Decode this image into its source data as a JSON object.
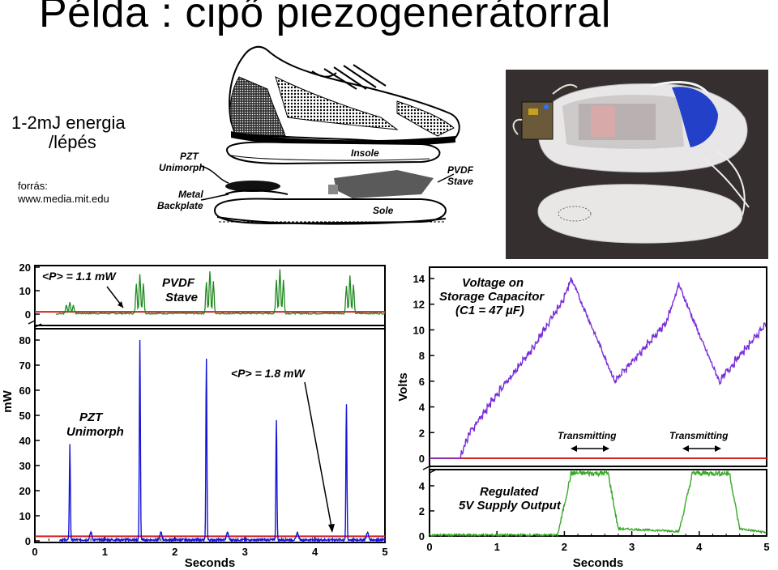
{
  "slide": {
    "title": "Példa : cipő piezogenerátorral",
    "energy_line1": "1-2mJ energia",
    "energy_line2": "/lépés",
    "source_label": "forrás:",
    "source_url": "www.media.mit.edu"
  },
  "diagram": {
    "pzt_unimorph": "PZT\nUnimorph",
    "metal_backplate": "Metal\nBackplate",
    "insole": "Insole",
    "sole": "Sole",
    "pvdf_stave": "PVDF\nStave"
  },
  "left_chart": {
    "ylabel": "mW",
    "xlabel": "Seconds",
    "x_ticks": [
      "0",
      "1",
      "2",
      "3",
      "4",
      "5"
    ],
    "top_y_ticks": [
      "20",
      "10",
      "0"
    ],
    "bottom_y_ticks": [
      "80",
      "70",
      "60",
      "50",
      "40",
      "30",
      "20",
      "10",
      "0"
    ],
    "pvdf_power": "<P> = 1.1 mW",
    "pvdf_label": "PVDF\nStave",
    "pzt_power": "<P> = 1.8 mW",
    "pzt_label": "PZT\nUnimorph"
  },
  "right_chart": {
    "ylabel": "Volts",
    "xlabel": "Seconds",
    "x_ticks": [
      "0",
      "1",
      "2",
      "3",
      "4",
      "5"
    ],
    "top_y_ticks": [
      "14",
      "12",
      "10",
      "8",
      "6",
      "4",
      "2",
      "0"
    ],
    "bottom_y_ticks": [
      "4",
      "2",
      "0"
    ],
    "capacitor_label": "Voltage on\nStorage Capacitor\n(C1 = 47 µF)",
    "transmitting_1": "Transmitting",
    "transmitting_2": "Transmitting",
    "regulated_label": "Regulated\n5V Supply Output"
  },
  "colors": {
    "pvdf_trace": "#1f8a1f",
    "pzt_trace": "#1414d8",
    "capacitor_trace": "#7a2fd8",
    "regulated_trace": "#3aa82a",
    "baseline": "#d42020"
  },
  "chart_data": [
    {
      "type": "line",
      "title": "",
      "xlabel": "Seconds",
      "ylabel": "mW",
      "xlim": [
        0,
        5
      ],
      "series": [
        {
          "name": "PVDF Stave",
          "x": [
            0.5,
            1.5,
            2.5,
            3.5,
            4.5
          ],
          "values": [
            5,
            17,
            18,
            19,
            16
          ]
        },
        {
          "name": "PZT Unimorph",
          "x": [
            0.5,
            1.5,
            2.45,
            3.45,
            4.45
          ],
          "values": [
            38,
            82,
            72,
            48,
            54
          ]
        }
      ],
      "annotations": [
        "<P> = 1.1 mW",
        "<P> = 1.8 mW"
      ]
    },
    {
      "type": "line",
      "title": "",
      "xlabel": "Seconds",
      "ylabel": "Volts",
      "xlim": [
        0,
        5
      ],
      "series": [
        {
          "name": "Voltage on Storage Capacitor (C1 = 47 µF)",
          "x": [
            0,
            0.45,
            0.6,
            1.0,
            1.5,
            2.0,
            2.1,
            2.55,
            2.75,
            3.0,
            3.5,
            3.7,
            4.05,
            4.3,
            4.6,
            5.0
          ],
          "values": [
            0,
            0,
            2,
            5,
            8.3,
            12.5,
            14,
            8.5,
            6,
            7.5,
            10.5,
            13.5,
            9,
            6,
            8,
            10.5
          ]
        },
        {
          "name": "Regulated 5V Supply Output",
          "x": [
            0,
            1.9,
            2.1,
            2.65,
            2.8,
            3.7,
            3.9,
            4.45,
            4.6,
            5.0
          ],
          "values": [
            0,
            0,
            5,
            5,
            0.5,
            0.3,
            5,
            5,
            0.5,
            0.2
          ]
        }
      ],
      "annotations": [
        "Transmitting",
        "Transmitting"
      ]
    }
  ]
}
